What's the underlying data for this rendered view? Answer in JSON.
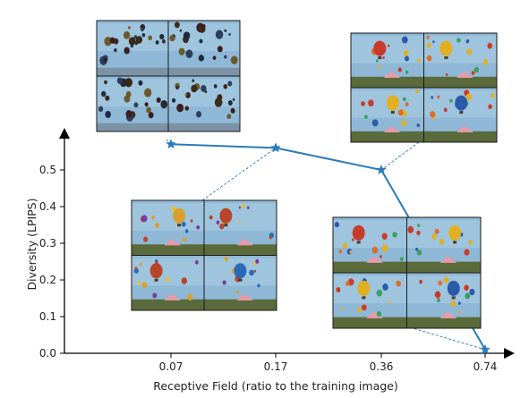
{
  "chart_data": {
    "type": "line",
    "xlabel": "Receptive Field (ratio to the training image)",
    "ylabel": "Diversity (LPIPS)",
    "categories": [
      "0.07",
      "0.17",
      "0.36",
      "0.74"
    ],
    "series": [
      {
        "values": [
          0.57,
          0.56,
          0.5,
          0.01
        ],
        "color": "#2b7bb9",
        "marker": "star"
      }
    ],
    "ylim": [
      0,
      0.65
    ],
    "yticks": [
      "0.0",
      "0.1",
      "0.2",
      "0.3",
      "0.4",
      "0.5"
    ],
    "grid": false,
    "legend": "none",
    "thumbnails": [
      {
        "category": "0.07",
        "scene": "hot-air-balloons-dense-sky",
        "grid": "2x2"
      },
      {
        "category": "0.17",
        "scene": "hot-air-balloons-with-tent",
        "grid": "2x2"
      },
      {
        "category": "0.36",
        "scene": "hot-air-balloons-over-crowd",
        "grid": "2x2"
      },
      {
        "category": "0.74",
        "scene": "hot-air-balloons-over-crowd-near-copy",
        "grid": "2x2"
      }
    ],
    "sky_color": "#8fb8d6",
    "ground_color": "#5a6a3a"
  }
}
